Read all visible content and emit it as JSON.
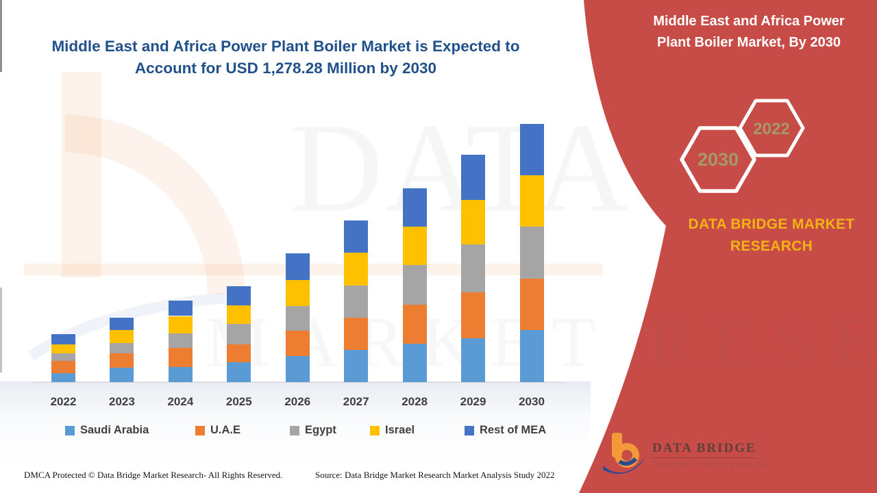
{
  "header": {
    "title": "Middle East and Africa Power Plant Boiler Market is Expected to\nAccount for USD 1,278.28 Million by 2030"
  },
  "chart_data": {
    "type": "bar",
    "stacked": true,
    "title": "Middle East and Africa Power Plant Boiler Market is Expected to Account for USD 1,278.28 Million by 2030",
    "unit": "USD Million",
    "categories": [
      "2022",
      "2023",
      "2024",
      "2025",
      "2026",
      "2027",
      "2028",
      "2029",
      "2030"
    ],
    "series": [
      {
        "name": "Saudi Arabia",
        "color": "#5B9BD5",
        "values": [
          43,
          71,
          74,
          98,
          129,
          160,
          189,
          217,
          256.28
        ]
      },
      {
        "name": "U.A.E",
        "color": "#ED7D31",
        "values": [
          61,
          72,
          94,
          88,
          124,
          158,
          195,
          228,
          254
        ]
      },
      {
        "name": "Egypt",
        "color": "#A5A5A5",
        "values": [
          37,
          50,
          74,
          102,
          124,
          160,
          194,
          235,
          260
        ]
      },
      {
        "name": "Israel",
        "color": "#FFC000",
        "values": [
          47,
          64,
          85,
          90,
          128,
          162,
          192,
          220,
          254
        ]
      },
      {
        "name": "Rest of MEA",
        "color": "#4472C4",
        "values": [
          48,
          61,
          76,
          98,
          133,
          160,
          189,
          224,
          254
        ]
      }
    ],
    "totals": [
      236,
      318,
      403,
      476,
      638,
      800,
      959,
      1124,
      1278.28
    ],
    "ylim": [
      0,
      1350
    ],
    "grid": false,
    "legend_position": "bottom",
    "highlight_total_2030": "USD 1,278.28 Million"
  },
  "panel": {
    "title": "Middle East and Africa Power\nPlant Boiler Market, By 2030",
    "hexagons": [
      {
        "label": "2030"
      },
      {
        "label": "2022"
      }
    ],
    "brand": "DATA BRIDGE MARKET\nRESEARCH",
    "logo": {
      "name": "DATA BRIDGE",
      "subtitle": "MARKET RESEARCH"
    },
    "colors": {
      "background": "#C74B46",
      "brand_gold": "#F2B414",
      "hex_label": "#A59A67",
      "title_navy": "#20518A"
    }
  },
  "watermarks": {
    "row1": "DATA BRIDGE",
    "row2": "MARKET RESEARCH"
  },
  "footer": {
    "dmca": "DMCA Protected © Data Bridge Market Research- All Rights Reserved.",
    "source": "Source: Data Bridge Market Research Market Analysis Study 2022"
  }
}
